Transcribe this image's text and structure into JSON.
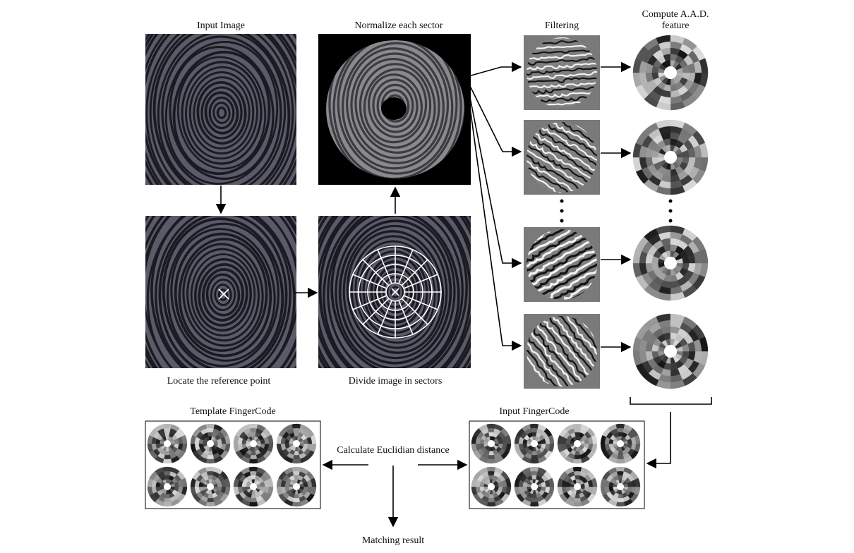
{
  "labels": {
    "input_image": "Input Image",
    "normalize": "Normalize each sector",
    "filtering": "Filtering",
    "compute_line1": "Compute A.A.D.",
    "compute_line2": "feature",
    "locate": "Locate the reference point",
    "divide": "Divide image in sectors",
    "template": "Template FingerCode",
    "input_fc": "Input FingerCode",
    "euclid": "Calculate Euclidian distance",
    "matching": "Matching result"
  },
  "colors": {
    "fingerprint_bg": "#5a5a68",
    "ridge": "#1a1a22",
    "filter_bg": "#7a7a7a",
    "sector_grid": "#ffffff",
    "arrow": "#000000"
  },
  "icons": {
    "reference_point": "x-mark-icon",
    "sector_grid": "polar-grid-icon",
    "ellipsis": "vertical-dots-icon"
  }
}
